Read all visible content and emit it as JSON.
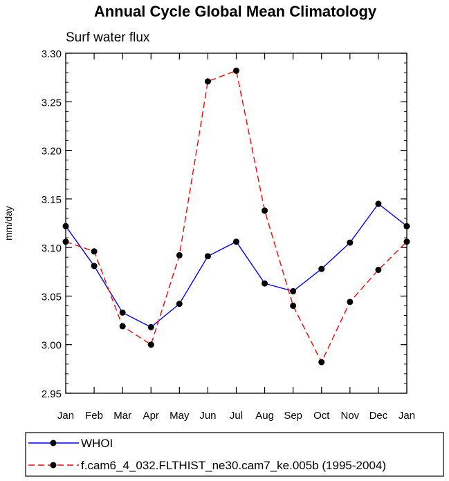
{
  "chart_data": {
    "type": "line",
    "title": "Annual Cycle Global Mean Climatology",
    "subtitle": "Surf water flux",
    "xlabel": "",
    "ylabel": "mm/day",
    "categories": [
      "Jan",
      "Feb",
      "Mar",
      "Apr",
      "May",
      "Jun",
      "Jul",
      "Aug",
      "Sep",
      "Oct",
      "Nov",
      "Dec",
      "Jan"
    ],
    "ylim": [
      2.95,
      3.3
    ],
    "yticks": [
      "2.95",
      "3.00",
      "3.05",
      "3.10",
      "3.15",
      "3.20",
      "3.25",
      "3.30"
    ],
    "yminor_step": 0.01,
    "grid": false,
    "legend_position": "bottom",
    "series": [
      {
        "name": "WHOI",
        "color": "#0000ff",
        "dash": "solid",
        "marker": "filled-circle",
        "values": [
          3.122,
          3.081,
          3.033,
          3.018,
          3.042,
          3.091,
          3.106,
          3.063,
          3.055,
          3.078,
          3.105,
          3.145,
          3.122
        ]
      },
      {
        "name": "f.cam6_4_032.FLTHIST_ne30.cam7_ke.005b (1995-2004)",
        "color": "#ff0000",
        "dash": "dashed",
        "marker": "filled-circle",
        "values": [
          3.106,
          3.096,
          3.019,
          3.0,
          3.092,
          3.271,
          3.282,
          3.138,
          3.04,
          2.982,
          3.044,
          3.077,
          3.106
        ]
      }
    ]
  }
}
